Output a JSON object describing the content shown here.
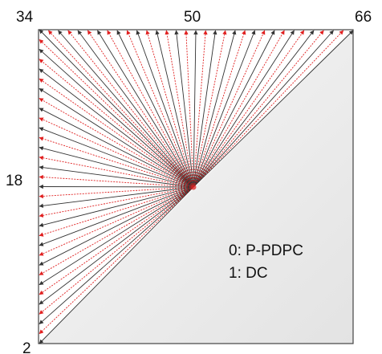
{
  "labels": {
    "mode_34": "34",
    "mode_50": "50",
    "mode_66": "66",
    "mode_18": "18",
    "mode_2": "2"
  },
  "legend": {
    "line_0": "0: P-PDPC",
    "line_1": "1: DC"
  },
  "colors": {
    "black_arrow": "#333333",
    "red_arrow": "#e02020",
    "frame": "#444444",
    "shade_light": "#f6f6f6",
    "shade_dark": "#e6e6e6"
  },
  "modes": {
    "first": 2,
    "last": 66
  }
}
